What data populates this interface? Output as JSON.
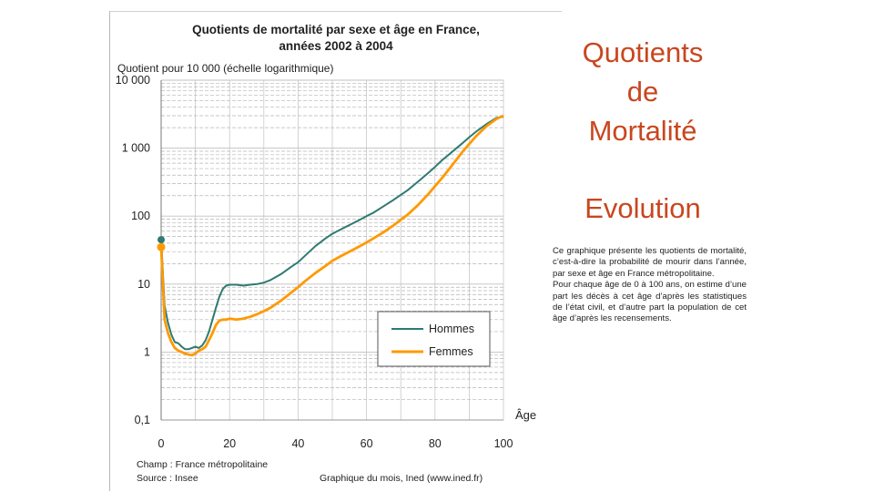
{
  "slide": {
    "title_lines": [
      "Quotients",
      "de",
      "Mortalité"
    ],
    "subtitle": "Evolution",
    "description": [
      "Ce graphique présente les quotients de mortalité, c’est-à-dire la probabilité de mourir dans l’année, par sexe et âge en France métropolitaine.",
      "Pour chaque âge de 0 à 100 ans, on estime d’une part les décès à cet âge d’après les statistiques de l’état civil, et d’autre part la population de cet âge d’après les recensements."
    ]
  },
  "chart_data": {
    "type": "line",
    "title_lines": [
      "Quotients de mortalité par sexe et âge en France,",
      "années 2002 à 2004"
    ],
    "ylabel": "Quotient  pour 10 000 (échelle logarithmique)",
    "xlabel": "Âge",
    "yscale": "log",
    "xlim": [
      0,
      100
    ],
    "ylim": [
      0.1,
      10000
    ],
    "x_ticks": [
      "0",
      "20",
      "40",
      "60",
      "80",
      "100"
    ],
    "y_ticks": [
      "10 000",
      "1 000",
      "100",
      "10",
      "1",
      "0,1"
    ],
    "grid": true,
    "legend_position": "lower-right",
    "footer": {
      "scope": "Champ : France métropolitaine",
      "source": "Source : Insee",
      "credit": "Graphique du mois, Ined (www.ined.fr)"
    },
    "colors": {
      "Hommes": "#2e7a72",
      "Femmes": "#ff9900"
    },
    "series": [
      {
        "name": "Hommes",
        "x": [
          0,
          1,
          2,
          3,
          4,
          5,
          6,
          7,
          8,
          9,
          10,
          11,
          12,
          13,
          14,
          15,
          16,
          17,
          18,
          19,
          20,
          22,
          24,
          26,
          28,
          30,
          32,
          35,
          38,
          40,
          42,
          45,
          48,
          50,
          52,
          55,
          58,
          60,
          62,
          65,
          68,
          70,
          72,
          75,
          78,
          80,
          82,
          85,
          88,
          90,
          92,
          95,
          98,
          100
        ],
        "y": [
          45,
          4.8,
          2.7,
          1.8,
          1.4,
          1.35,
          1.2,
          1.1,
          1.1,
          1.15,
          1.2,
          1.15,
          1.25,
          1.5,
          2.0,
          3.0,
          4.5,
          6.5,
          8.5,
          9.5,
          9.8,
          9.8,
          9.5,
          9.8,
          10,
          10.5,
          11.5,
          14,
          18,
          21,
          26,
          36,
          47,
          55,
          62,
          74,
          88,
          100,
          112,
          140,
          175,
          205,
          240,
          320,
          430,
          530,
          660,
          880,
          1180,
          1450,
          1750,
          2250,
          2800,
          2900
        ]
      },
      {
        "name": "Femmes",
        "x": [
          0,
          1,
          2,
          3,
          4,
          5,
          6,
          7,
          8,
          9,
          10,
          11,
          12,
          13,
          14,
          15,
          16,
          17,
          18,
          19,
          20,
          22,
          24,
          26,
          28,
          30,
          32,
          35,
          38,
          40,
          42,
          45,
          48,
          50,
          52,
          55,
          58,
          60,
          62,
          65,
          68,
          70,
          72,
          75,
          78,
          80,
          82,
          85,
          88,
          90,
          92,
          95,
          98,
          100
        ],
        "y": [
          35,
          3.0,
          1.9,
          1.4,
          1.15,
          1.05,
          1.0,
          0.95,
          0.92,
          0.9,
          0.95,
          1.05,
          1.1,
          1.2,
          1.5,
          1.9,
          2.5,
          2.9,
          3.0,
          3.0,
          3.1,
          3.0,
          3.1,
          3.3,
          3.6,
          4.0,
          4.5,
          5.7,
          7.5,
          9.0,
          11,
          14.5,
          18.5,
          22,
          25,
          30,
          36,
          41,
          47,
          58,
          74,
          88,
          105,
          145,
          210,
          275,
          360,
          560,
          880,
          1150,
          1500,
          2100,
          2700,
          3000
        ]
      }
    ]
  }
}
